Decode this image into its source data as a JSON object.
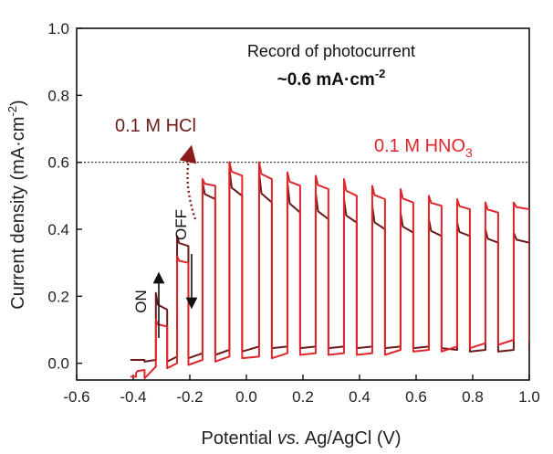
{
  "chart_data": {
    "type": "line",
    "xlabel_parts": [
      "Potential ",
      "vs.",
      " Ag/AgCl (V)"
    ],
    "ylabel_parts": [
      "Current density (mA·cm",
      "-2",
      ")"
    ],
    "xlim": [
      -0.6,
      1.0
    ],
    "ylim": [
      -0.05,
      1.0
    ],
    "xticks": [
      "-0.6",
      "-0.4",
      "-0.2",
      "0.0",
      "0.2",
      "0.4",
      "0.6",
      "0.8",
      "1.0"
    ],
    "yticks": [
      "0.0",
      "0.2",
      "0.4",
      "0.6",
      "0.8",
      "1.0"
    ],
    "reference_line": {
      "y": 0.6,
      "style": "dotted"
    },
    "annotations": {
      "record_line1": "Record of photocurrent",
      "record_line2_main": "~0.6 mA·cm",
      "record_line2_sup": "-2",
      "on_label": "ON",
      "off_label": "OFF"
    },
    "series": [
      {
        "name": "0.1 M HCl",
        "name_parts": [
          "0.1 M HCl"
        ],
        "color": "#6b1a1a",
        "pulses": [
          {
            "on": -0.39,
            "off": -0.36,
            "dark": 0.01,
            "peak": 0.01,
            "plateau": 0.01
          },
          {
            "on": -0.32,
            "off": -0.28,
            "dark": 0.01,
            "peak": 0.21,
            "plateau": 0.16
          },
          {
            "on": -0.245,
            "off": -0.205,
            "dark": 0.02,
            "peak": 0.38,
            "plateau": 0.35
          },
          {
            "on": -0.155,
            "off": -0.11,
            "dark": 0.03,
            "peak": 0.54,
            "plateau": 0.49
          },
          {
            "on": -0.06,
            "off": -0.015,
            "dark": 0.04,
            "peak": 0.58,
            "plateau": 0.5
          },
          {
            "on": 0.045,
            "off": 0.09,
            "dark": 0.05,
            "peak": 0.57,
            "plateau": 0.48
          },
          {
            "on": 0.145,
            "off": 0.19,
            "dark": 0.05,
            "peak": 0.54,
            "plateau": 0.45
          },
          {
            "on": 0.245,
            "off": 0.29,
            "dark": 0.05,
            "peak": 0.51,
            "plateau": 0.43
          },
          {
            "on": 0.345,
            "off": 0.39,
            "dark": 0.05,
            "peak": 0.49,
            "plateau": 0.42
          },
          {
            "on": 0.445,
            "off": 0.49,
            "dark": 0.05,
            "peak": 0.47,
            "plateau": 0.4
          },
          {
            "on": 0.545,
            "off": 0.59,
            "dark": 0.05,
            "peak": 0.45,
            "plateau": 0.39
          },
          {
            "on": 0.645,
            "off": 0.69,
            "dark": 0.05,
            "peak": 0.43,
            "plateau": 0.38
          },
          {
            "on": 0.745,
            "off": 0.79,
            "dark": 0.04,
            "peak": 0.42,
            "plateau": 0.38
          },
          {
            "on": 0.845,
            "off": 0.89,
            "dark": 0.04,
            "peak": 0.4,
            "plateau": 0.36
          },
          {
            "on": 0.945,
            "off": 1.0,
            "dark": 0.04,
            "peak": 0.39,
            "plateau": 0.36
          }
        ]
      },
      {
        "name": "0.1 M HNO3",
        "name_parts": [
          "0.1 M HNO",
          "3"
        ],
        "color": "#e0262b",
        "pulses": [
          {
            "on": -0.39,
            "off": -0.36,
            "dark": -0.04,
            "peak": -0.03,
            "plateau": -0.02
          },
          {
            "on": -0.32,
            "off": -0.28,
            "dark": -0.01,
            "peak": 0.13,
            "plateau": 0.11
          },
          {
            "on": -0.245,
            "off": -0.205,
            "dark": 0.0,
            "peak": 0.32,
            "plateau": 0.3
          },
          {
            "on": -0.155,
            "off": -0.11,
            "dark": 0.01,
            "peak": 0.55,
            "plateau": 0.53
          },
          {
            "on": -0.06,
            "off": -0.015,
            "dark": 0.02,
            "peak": 0.6,
            "plateau": 0.56
          },
          {
            "on": 0.045,
            "off": 0.09,
            "dark": 0.02,
            "peak": 0.6,
            "plateau": 0.55
          },
          {
            "on": 0.145,
            "off": 0.19,
            "dark": 0.03,
            "peak": 0.57,
            "plateau": 0.53
          },
          {
            "on": 0.245,
            "off": 0.29,
            "dark": 0.03,
            "peak": 0.56,
            "plateau": 0.52
          },
          {
            "on": 0.345,
            "off": 0.39,
            "dark": 0.03,
            "peak": 0.55,
            "plateau": 0.5
          },
          {
            "on": 0.445,
            "off": 0.49,
            "dark": 0.03,
            "peak": 0.53,
            "plateau": 0.49
          },
          {
            "on": 0.545,
            "off": 0.59,
            "dark": 0.04,
            "peak": 0.52,
            "plateau": 0.48
          },
          {
            "on": 0.645,
            "off": 0.69,
            "dark": 0.04,
            "peak": 0.5,
            "plateau": 0.47
          },
          {
            "on": 0.745,
            "off": 0.79,
            "dark": 0.05,
            "peak": 0.49,
            "plateau": 0.46
          },
          {
            "on": 0.845,
            "off": 0.89,
            "dark": 0.06,
            "peak": 0.48,
            "plateau": 0.45
          },
          {
            "on": 0.945,
            "off": 1.0,
            "dark": 0.07,
            "peak": 0.48,
            "plateau": 0.46
          }
        ]
      }
    ]
  }
}
